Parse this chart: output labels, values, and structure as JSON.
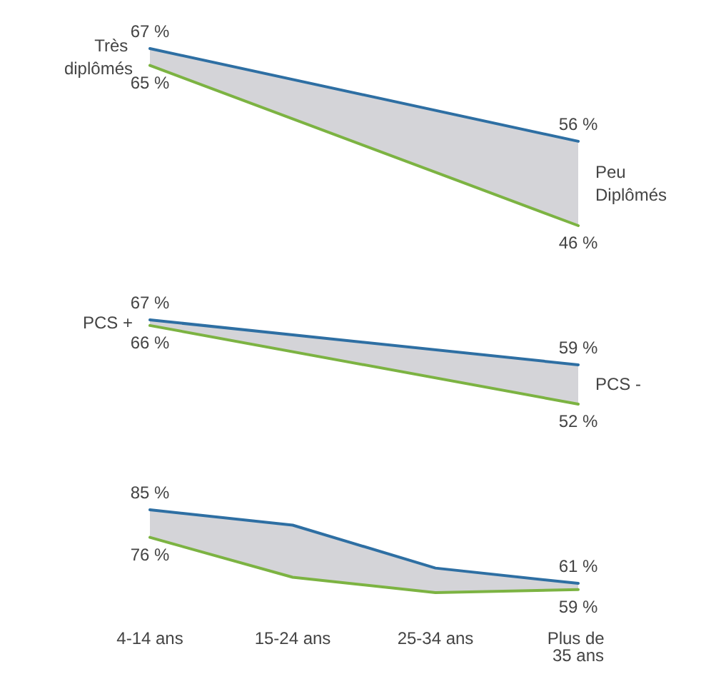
{
  "chart_data": [
    {
      "type": "line",
      "categories": [
        "Très diplômés",
        "Peu Diplômés"
      ],
      "marker": "none",
      "series": [
        {
          "color": "#2e6fa3",
          "values": [
            67,
            56
          ],
          "value_labels": [
            "67 %",
            "56 %"
          ],
          "upper": [
            67,
            56
          ],
          "lower": [
            65,
            46
          ]
        },
        {
          "color": "#7cb342",
          "values": [
            65,
            46
          ],
          "value_labels": [
            "65 %",
            "46 %"
          ]
        }
      ]
    },
    {
      "type": "line",
      "categories": [
        "PCS +",
        "PCS -"
      ],
      "marker": "none",
      "series": [
        {
          "color": "#2e6fa3",
          "values": [
            67,
            59
          ],
          "value_labels": [
            "67 %",
            "59 %"
          ],
          "upper": [
            67,
            59
          ],
          "lower": [
            66,
            52
          ]
        },
        {
          "color": "#7cb342",
          "values": [
            66,
            52
          ],
          "value_labels": [
            "66 %",
            "52 %"
          ]
        }
      ]
    },
    {
      "type": "line",
      "categories": [
        "4-14 ans",
        "15-24 ans",
        "25-34 ans",
        "Plus de 35 ans"
      ],
      "marker": "none",
      "series": [
        {
          "color": "#2e6fa3",
          "values": [
            85,
            80,
            66,
            61
          ],
          "value_labels": [
            "85 %",
            null,
            null,
            "61 %"
          ],
          "upper": [
            85,
            80,
            66,
            61
          ],
          "lower": [
            76,
            63,
            58,
            59
          ]
        },
        {
          "color": "#7cb342",
          "values": [
            76,
            63,
            58,
            59
          ],
          "value_labels": [
            "76 %",
            null,
            null,
            "59 %"
          ]
        }
      ]
    }
  ]
}
